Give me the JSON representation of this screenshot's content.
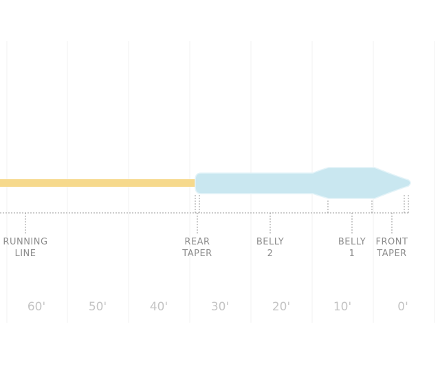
{
  "segments": [
    {
      "lines": [
        "RUNNING",
        "LINE"
      ]
    },
    {
      "lines": [
        "REAR",
        "TAPER"
      ]
    },
    {
      "lines": [
        "BELLY",
        "2"
      ]
    },
    {
      "lines": [
        "BELLY",
        "1"
      ]
    },
    {
      "lines": [
        "FRONT",
        "TAPER"
      ]
    }
  ],
  "distances": [
    "60'",
    "50'",
    "40'",
    "30'",
    "20'",
    "10'",
    "0'"
  ]
}
